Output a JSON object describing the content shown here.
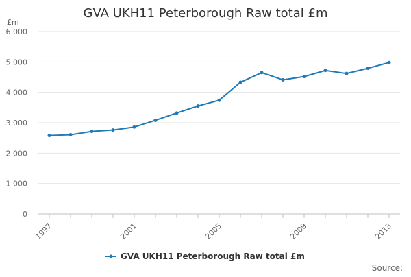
{
  "chart_data": {
    "type": "line",
    "title": "GVA UKH11 Peterborough Raw total £m",
    "xlabel": "",
    "ylabel": "£m",
    "x": [
      1997,
      1998,
      1999,
      2000,
      2001,
      2002,
      2003,
      2004,
      2005,
      2006,
      2007,
      2008,
      2009,
      2010,
      2011,
      2012,
      2013
    ],
    "series": [
      {
        "name": "GVA UKH11 Peterborough Raw total £m",
        "color": "#1f7ab8",
        "values": [
          2580,
          2605,
          2715,
          2760,
          2860,
          3080,
          3320,
          3550,
          3740,
          4330,
          4650,
          4410,
          4520,
          4720,
          4620,
          4790,
          4980
        ]
      }
    ],
    "xlim": [
      1997,
      2013
    ],
    "ylim": [
      0,
      6000
    ],
    "yticks": [
      0,
      1000,
      2000,
      3000,
      4000,
      5000,
      6000
    ],
    "ytick_labels": [
      "0",
      "1 000",
      "2 000",
      "3 000",
      "4 000",
      "5 000",
      "6 000"
    ],
    "xtick_labels": [
      "1997",
      "2001",
      "2005",
      "2009",
      "2013"
    ],
    "grid": true,
    "legend_position": "bottom-center",
    "source_label": "Source:"
  }
}
